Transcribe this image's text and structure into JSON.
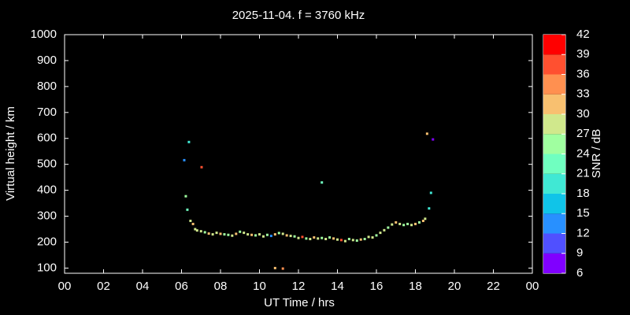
{
  "chart_data": {
    "type": "scatter",
    "title": "2025-11-04. f = 3760 kHz",
    "x_label": "UT Time / hrs",
    "y_label": "Virtual height / km",
    "xlim": [
      0,
      24
    ],
    "xticks": [
      {
        "value": 0,
        "label": "00"
      },
      {
        "value": 2,
        "label": "02"
      },
      {
        "value": 4,
        "label": "04"
      },
      {
        "value": 6,
        "label": "06"
      },
      {
        "value": 8,
        "label": "08"
      },
      10,
      12,
      14,
      16,
      18,
      20,
      22,
      {
        "value": 24,
        "label": "00"
      }
    ],
    "ylim": [
      80,
      1000
    ],
    "yticks": [
      100,
      200,
      300,
      400,
      500,
      600,
      700,
      800,
      900,
      1000
    ],
    "series": [
      {
        "name": "SNR",
        "x": [
          6.14,
          6.38,
          7.03,
          6.22,
          6.3,
          6.46,
          6.59,
          6.7,
          13.2,
          10.8,
          11.2,
          18.6,
          18.9,
          18.7,
          18.8,
          6.8,
          7.0,
          7.2,
          7.4,
          7.6,
          7.8,
          8.0,
          8.2,
          8.4,
          8.6,
          8.8,
          9.0,
          9.2,
          9.4,
          9.6,
          9.8,
          10.0,
          10.2,
          10.4,
          10.6,
          10.8,
          11.0,
          11.2,
          11.4,
          11.6,
          11.8,
          12.0,
          12.2,
          12.4,
          12.6,
          12.8,
          13.0,
          13.2,
          13.4,
          13.6,
          13.8,
          14.0,
          14.2,
          14.4,
          14.6,
          14.8,
          15.0,
          15.2,
          15.4,
          15.6,
          15.8,
          16.0,
          16.2,
          16.4,
          16.6,
          16.8,
          17.0,
          17.2,
          17.4,
          17.6,
          17.8,
          18.0,
          18.2,
          18.4,
          18.5
        ],
        "values": [
          516,
          586,
          489,
          377,
          325,
          282,
          270,
          250,
          430,
          100,
          98,
          618,
          596,
          330,
          390,
          245,
          242,
          238,
          233,
          230,
          236,
          232,
          230,
          228,
          225,
          232,
          240,
          236,
          230,
          228,
          226,
          230,
          222,
          228,
          224,
          230,
          235,
          232,
          226,
          224,
          222,
          216,
          220,
          214,
          212,
          218,
          214,
          216,
          212,
          218,
          214,
          210,
          208,
          204,
          212,
          208,
          206,
          210,
          212,
          220,
          218,
          226,
          236,
          246,
          256,
          268,
          276,
          270,
          266,
          270,
          266,
          270,
          276,
          282,
          290
        ],
        "snr": [
          13,
          20,
          38,
          25,
          22,
          28,
          31,
          27,
          22,
          32,
          34,
          31,
          8,
          20,
          19,
          27,
          29,
          25,
          31,
          28,
          27,
          30,
          24,
          26,
          28,
          31,
          25,
          27,
          29,
          30,
          24,
          27,
          28,
          26,
          13,
          31,
          25,
          27,
          30,
          28,
          26,
          29,
          37,
          24,
          27,
          31,
          28,
          26,
          29,
          25,
          30,
          27,
          36,
          28,
          24,
          29,
          26,
          31,
          25,
          27,
          29,
          24,
          27,
          28,
          25,
          29,
          31,
          27,
          24,
          26,
          28,
          30,
          26,
          32,
          29
        ]
      }
    ],
    "colorbar": {
      "label": "SNR / dB",
      "ticks": [
        6,
        9,
        12,
        15,
        18,
        21,
        24,
        27,
        30,
        33,
        36,
        39,
        42
      ],
      "colors": [
        "#8000ff",
        "#5050ff",
        "#2890ff",
        "#10c4e8",
        "#40e8d4",
        "#70ffc0",
        "#a0ffa0",
        "#d0e88c",
        "#f8c070",
        "#ff9050",
        "#ff5030",
        "#ff0000"
      ]
    }
  }
}
